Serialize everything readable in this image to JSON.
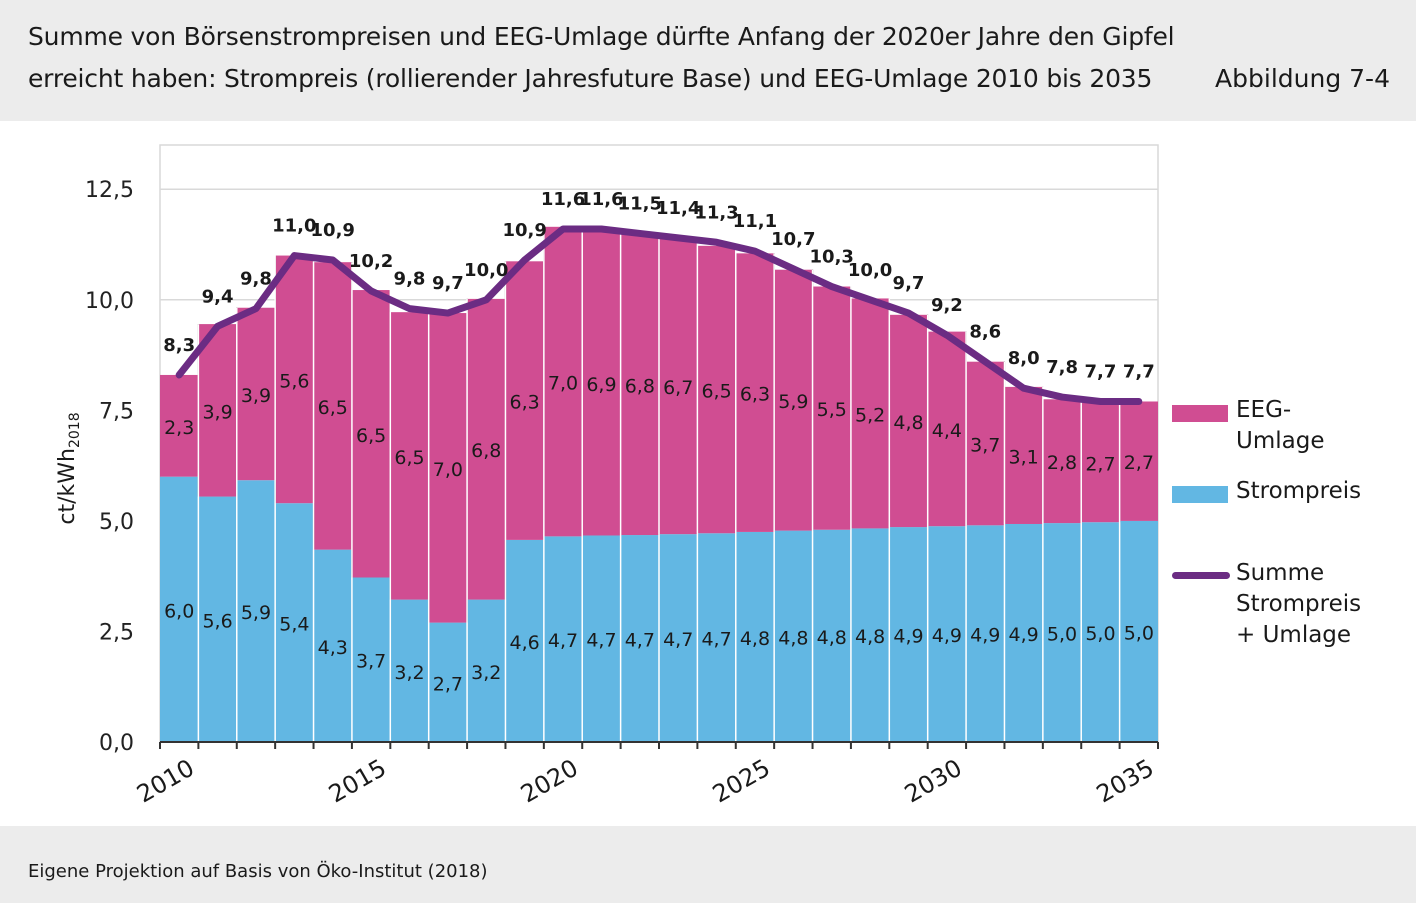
{
  "header": {
    "title_line1": "Summe von Börsenstrompreisen und EEG-Umlage dürfte Anfang der 2020er Jahre den Gipfel",
    "title_line2": "erreicht haben: Strompreis (rollierender Jahresfuture Base) und EEG-Umlage 2010 bis 2035",
    "figure_number": "Abbildung 7-4"
  },
  "footer": {
    "source": "Eigene Projektion auf Basis von Öko-Institut (2018)"
  },
  "colors": {
    "strompreis": "#62b7e3",
    "eeg_umlage": "#d04d92",
    "summe": "#6b2c83",
    "grid": "#d9d9d9",
    "axis": "#333333"
  },
  "chart_data": {
    "type": "bar",
    "stacked": true,
    "title": "",
    "xlabel": "",
    "ylabel": "ct/kWh",
    "ylabel_subscript": "2018",
    "ylim": [
      0,
      13.5
    ],
    "yticks": [
      "0,0",
      "2,5",
      "5,0",
      "7,5",
      "10,0",
      "12,5"
    ],
    "ytick_values": [
      0,
      2.5,
      5.0,
      7.5,
      10.0,
      12.5
    ],
    "grid": true,
    "legend_position": "right",
    "x": [
      2010,
      2011,
      2012,
      2013,
      2014,
      2015,
      2016,
      2017,
      2018,
      2019,
      2020,
      2021,
      2022,
      2023,
      2024,
      2025,
      2026,
      2027,
      2028,
      2029,
      2030,
      2031,
      2032,
      2033,
      2034,
      2035
    ],
    "xtick_labels": [
      "2010",
      "2015",
      "2020",
      "2025",
      "2030",
      "2035"
    ],
    "xtick_values": [
      2010,
      2015,
      2020,
      2025,
      2030,
      2035
    ],
    "series": [
      {
        "name": "Strompreis",
        "type": "bar",
        "values": [
          6.0,
          5.55,
          5.92,
          5.4,
          4.35,
          3.72,
          3.22,
          2.7,
          3.22,
          4.57,
          4.65,
          4.67,
          4.68,
          4.7,
          4.72,
          4.75,
          4.78,
          4.8,
          4.83,
          4.86,
          4.88,
          4.9,
          4.93,
          4.95,
          4.97,
          5.0
        ],
        "labels": [
          "6,0",
          "5,6",
          "5,9",
          "5,4",
          "4,3",
          "3,7",
          "3,2",
          "2,7",
          "3,2",
          "4,6",
          "4,7",
          "4,7",
          "4,7",
          "4,7",
          "4,7",
          "4,8",
          "4,8",
          "4,8",
          "4,8",
          "4,9",
          "4,9",
          "4,9",
          "4,9",
          "5,0",
          "5,0",
          "5,0"
        ]
      },
      {
        "name": "EEG-Umlage",
        "type": "bar",
        "values": [
          2.3,
          3.9,
          3.9,
          5.6,
          6.5,
          6.5,
          6.5,
          7.0,
          6.8,
          6.3,
          7.0,
          6.9,
          6.8,
          6.7,
          6.5,
          6.3,
          5.9,
          5.5,
          5.2,
          4.8,
          4.4,
          3.7,
          3.1,
          2.8,
          2.7,
          2.7
        ],
        "labels": [
          "2,3",
          "3,9",
          "3,9",
          "5,6",
          "6,5",
          "6,5",
          "6,5",
          "7,0",
          "6,8",
          "6,3",
          "7,0",
          "6,9",
          "6,8",
          "6,7",
          "6,5",
          "6,3",
          "5,9",
          "5,5",
          "5,2",
          "4,8",
          "4,4",
          "3,7",
          "3,1",
          "2,8",
          "2,7",
          "2,7"
        ]
      },
      {
        "name": "Summe Strompreis + Umlage",
        "type": "line",
        "values": [
          8.3,
          9.4,
          9.8,
          11.0,
          10.9,
          10.2,
          9.8,
          9.7,
          10.0,
          10.9,
          11.6,
          11.6,
          11.5,
          11.4,
          11.3,
          11.1,
          10.7,
          10.3,
          10.0,
          9.7,
          9.2,
          8.6,
          8.0,
          7.8,
          7.7,
          7.7
        ],
        "labels": [
          "8,3",
          "9,4",
          "9,8",
          "11,0",
          "10,9",
          "10,2",
          "9,8",
          "9,7",
          "10,0",
          "10,9",
          "11,6",
          "11,6",
          "11,5",
          "11,4",
          "11,3",
          "11,1",
          "10,7",
          "10,3",
          "10,0",
          "9,7",
          "9,2",
          "8,6",
          "8,0",
          "7,8",
          "7,7",
          "7,7"
        ]
      }
    ],
    "legend": [
      {
        "series": "EEG-Umlage",
        "label": "EEG-\nUmlage"
      },
      {
        "series": "Strompreis",
        "label": "Strompreis"
      },
      {
        "series": "Summe Strompreis + Umlage",
        "label": "Summe\nStrompreis\n+ Umlage"
      }
    ]
  }
}
